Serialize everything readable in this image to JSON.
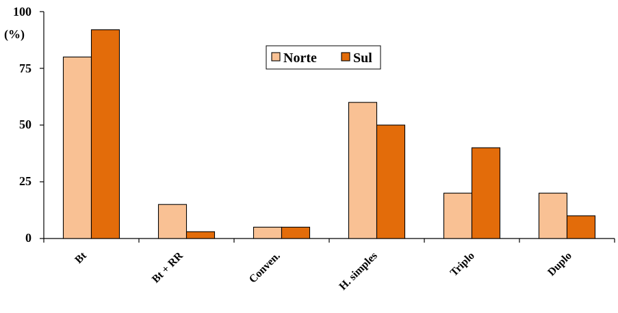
{
  "chart_data": {
    "type": "bar",
    "ylabel": "(%)",
    "ylim": [
      0,
      100
    ],
    "yticks": [
      "0",
      "25",
      "50",
      "75",
      "100"
    ],
    "categories": [
      "Bt",
      "Bt + RR",
      "Conven.",
      "H. simples",
      "Triplo",
      "Duplo"
    ],
    "series": [
      {
        "name": "Norte",
        "color": "#F9C194",
        "values": [
          80,
          15,
          5,
          60,
          20,
          20
        ]
      },
      {
        "name": "Sul",
        "color": "#E36C0A",
        "values": [
          92,
          3,
          5,
          50,
          40,
          10
        ]
      }
    ],
    "legend_position": "top-center",
    "grid": false
  }
}
